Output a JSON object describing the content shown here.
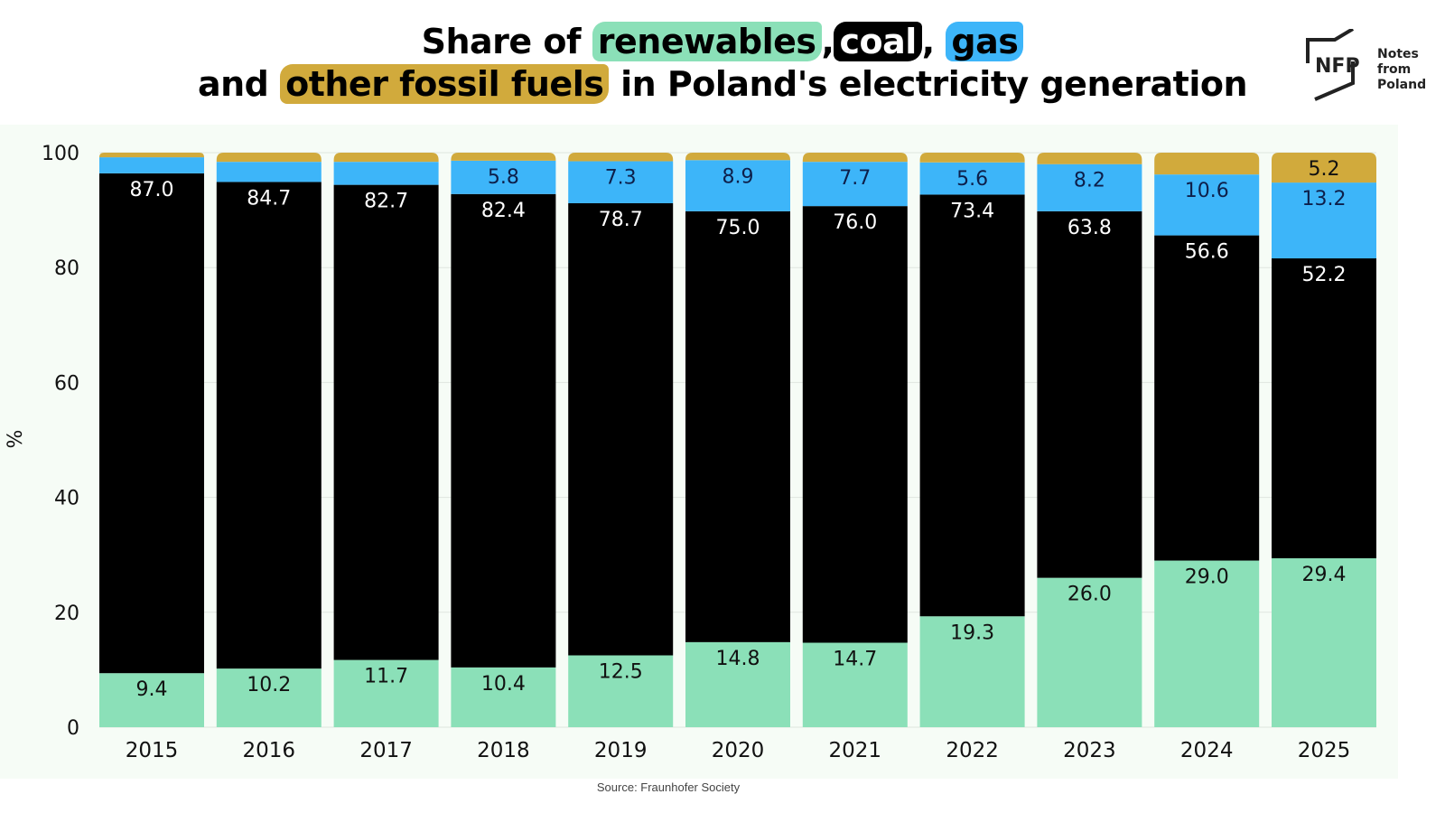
{
  "header": {
    "title_line1": [
      {
        "text": "Share of ",
        "highlight": null
      },
      {
        "text": "renewables",
        "highlight": "#8be0b8"
      },
      {
        "text": ",",
        "highlight": null
      },
      {
        "text": "coal",
        "highlight": "#000000",
        "color": "#ffffff"
      },
      {
        "text": ", ",
        "highlight": null
      },
      {
        "text": "gas",
        "highlight": "#3db5f9"
      }
    ],
    "title_line2": [
      {
        "text": "and ",
        "highlight": null
      },
      {
        "text": "other fossil fuels",
        "highlight": "#d1aa3c"
      },
      {
        "text": " in Poland's electricity generation",
        "highlight": null
      }
    ]
  },
  "logo": {
    "mark": "NFP",
    "name_line1": "Notes from",
    "name_line2": "Poland"
  },
  "source": "Source: Fraunhofer Society",
  "chart_data": {
    "type": "bar",
    "stacked": true,
    "title": "Share of renewables, coal, gas and other fossil fuels in Poland's electricity generation",
    "xlabel": "",
    "ylabel": "%",
    "ylim": [
      0,
      100
    ],
    "yticks": [
      0,
      20,
      40,
      60,
      80,
      100
    ],
    "grid": true,
    "legend": "none (encoded in title highlights)",
    "categories": [
      "2015",
      "2016",
      "2017",
      "2018",
      "2019",
      "2020",
      "2021",
      "2022",
      "2023",
      "2024",
      "2025"
    ],
    "series": [
      {
        "name": "Renewables",
        "color": "#8be0b8",
        "label_color": "#111111",
        "values": [
          9.4,
          10.2,
          11.7,
          10.4,
          12.5,
          14.8,
          14.7,
          19.3,
          26.0,
          29.0,
          29.4
        ],
        "labels": [
          "9.4",
          "10.2",
          "11.7",
          "10.4",
          "12.5",
          "14.8",
          "14.7",
          "19.3",
          "26.0",
          "29.0",
          "29.4"
        ]
      },
      {
        "name": "Coal",
        "color": "#000000",
        "label_color": "#ffffff",
        "values": [
          87.0,
          84.7,
          82.7,
          82.4,
          78.7,
          75.0,
          76.0,
          73.4,
          63.8,
          56.6,
          52.2
        ],
        "labels": [
          "87.0",
          "84.7",
          "82.7",
          "82.4",
          "78.7",
          "75.0",
          "76.0",
          "73.4",
          "63.8",
          "56.6",
          "52.2"
        ]
      },
      {
        "name": "Gas",
        "color": "#3db5f9",
        "label_color": "#0d1f4a",
        "values": [
          2.8,
          3.5,
          4.0,
          5.8,
          7.3,
          8.9,
          7.7,
          5.6,
          8.2,
          10.6,
          13.2
        ],
        "labels": [
          "",
          "",
          "",
          "5.8",
          "7.3",
          "8.9",
          "7.7",
          "5.6",
          "8.2",
          "10.6",
          "13.2"
        ]
      },
      {
        "name": "Other fossil fuels",
        "color": "#d1aa3c",
        "label_color": "#111111",
        "values": [
          0.8,
          1.6,
          1.6,
          1.4,
          1.5,
          1.3,
          1.6,
          1.7,
          2.0,
          3.8,
          5.2
        ],
        "labels": [
          "",
          "",
          "",
          "",
          "",
          "",
          "",
          "",
          "",
          "",
          "5.2"
        ]
      }
    ]
  }
}
